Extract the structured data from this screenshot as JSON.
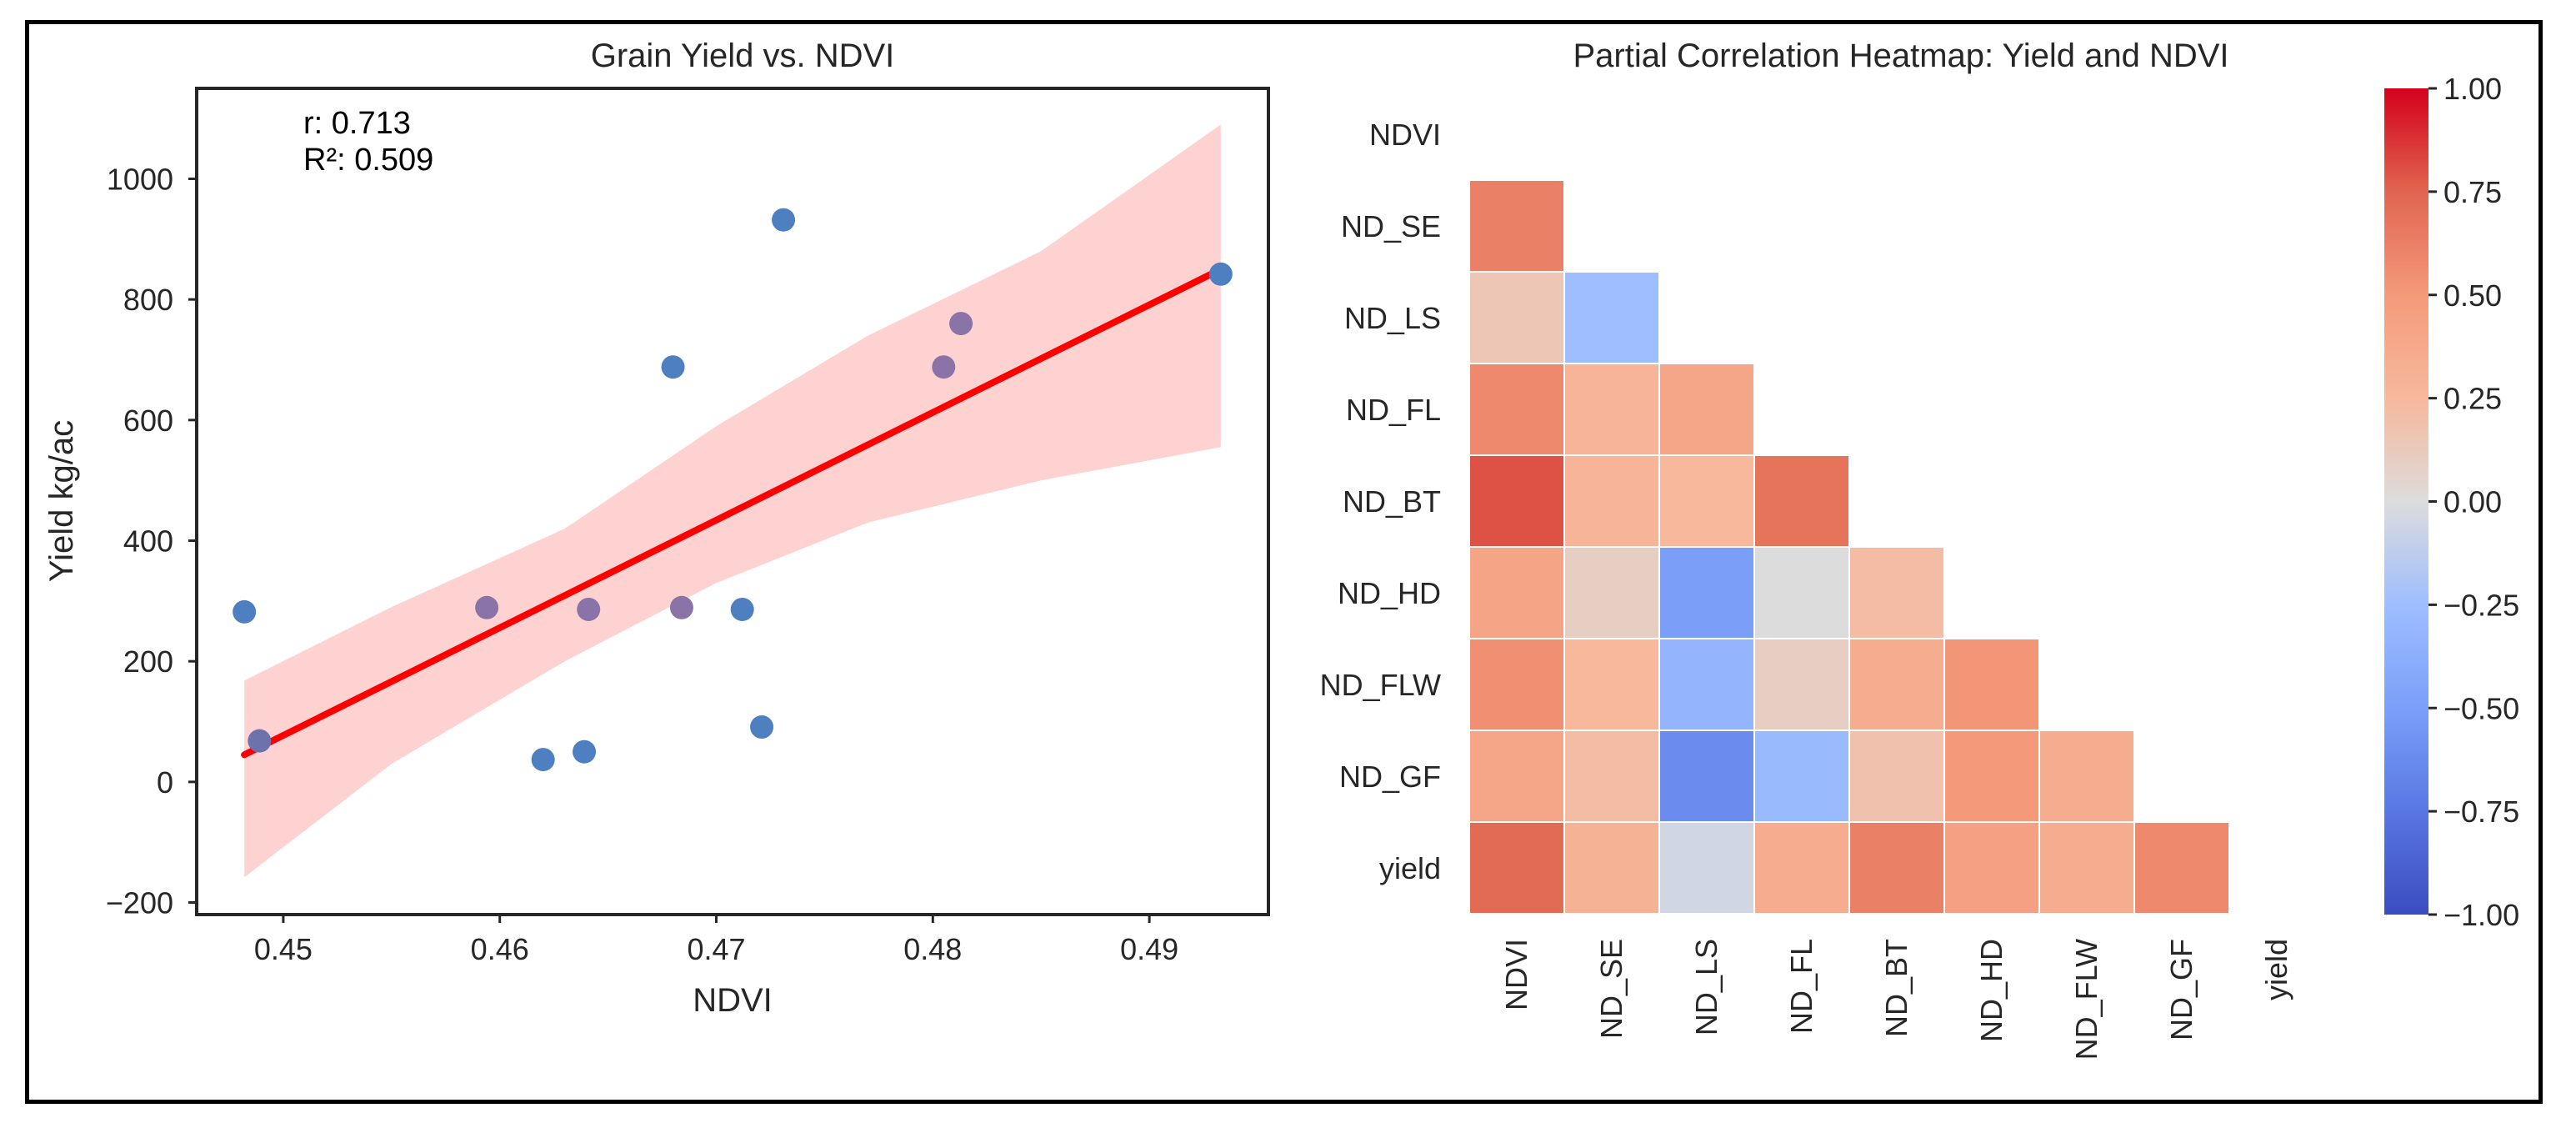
{
  "chart_data": [
    {
      "type": "scatter",
      "title": "Grain Yield vs. NDVI",
      "xlabel": "NDVI",
      "ylabel": "Yield kg/ac",
      "xlim": [
        0.446,
        0.4955
      ],
      "ylim": [
        -220,
        1150
      ],
      "xticks": [
        0.45,
        0.46,
        0.47,
        0.48,
        0.49
      ],
      "xtick_labels": [
        "0.45",
        "0.46",
        "0.47",
        "0.48",
        "0.49"
      ],
      "yticks": [
        -200,
        0,
        200,
        400,
        600,
        800,
        1000
      ],
      "ytick_labels": [
        "−200",
        "0",
        "200",
        "400",
        "600",
        "800",
        "1000"
      ],
      "grid": false,
      "points": [
        {
          "x": 0.4482,
          "y": 282,
          "color": "#4e7fc0"
        },
        {
          "x": 0.4489,
          "y": 68,
          "color": "#6d72ad"
        },
        {
          "x": 0.4594,
          "y": 289,
          "color": "#8a73a6"
        },
        {
          "x": 0.462,
          "y": 37,
          "color": "#4e7fc0"
        },
        {
          "x": 0.4639,
          "y": 50,
          "color": "#4e7fc0"
        },
        {
          "x": 0.4641,
          "y": 286,
          "color": "#8a73a6"
        },
        {
          "x": 0.468,
          "y": 688,
          "color": "#4e7fc0"
        },
        {
          "x": 0.4684,
          "y": 289,
          "color": "#8a73a6"
        },
        {
          "x": 0.4712,
          "y": 286,
          "color": "#4e7fc0"
        },
        {
          "x": 0.4721,
          "y": 91,
          "color": "#4e7fc0"
        },
        {
          "x": 0.4731,
          "y": 932,
          "color": "#4e7fc0"
        },
        {
          "x": 0.4805,
          "y": 688,
          "color": "#8a73a6"
        },
        {
          "x": 0.4813,
          "y": 760,
          "color": "#8a73a6"
        },
        {
          "x": 0.4933,
          "y": 842,
          "color": "#4e7fc0"
        }
      ],
      "regression_line": {
        "x": [
          0.4482,
          0.4933
        ],
        "y": [
          45,
          850
        ],
        "color": "#ff0000"
      },
      "confidence_band": {
        "x": [
          0.4482,
          0.455,
          0.463,
          0.47,
          0.477,
          0.485,
          0.4933
        ],
        "upper": [
          168,
          290,
          420,
          590,
          740,
          880,
          1090
        ],
        "lower": [
          -158,
          30,
          200,
          330,
          430,
          500,
          555
        ],
        "color": "#ffd2d2"
      },
      "annotation_r": "r: 0.713",
      "annotation_r2": "R²: 0.509"
    },
    {
      "type": "heatmap",
      "title": "Partial Correlation Heatmap: Yield and NDVI",
      "row_labels": [
        "NDVI",
        "ND_SE",
        "ND_LS",
        "ND_FL",
        "ND_BT",
        "ND_HD",
        "ND_FLW",
        "ND_GF",
        "yield"
      ],
      "col_labels": [
        "NDVI",
        "ND_SE",
        "ND_LS",
        "ND_FL",
        "ND_BT",
        "ND_HD",
        "ND_FLW",
        "ND_GF",
        "yield"
      ],
      "mask": "upper-triangle-including-diagonal",
      "values": [
        [],
        [
          0.62
        ],
        [
          0.15,
          -0.25
        ],
        [
          0.58,
          0.28,
          0.4
        ],
        [
          0.8,
          0.28,
          0.25,
          0.68
        ],
        [
          0.42,
          0.1,
          -0.5,
          0.0,
          0.22
        ],
        [
          0.55,
          0.25,
          -0.32,
          0.1,
          0.35,
          0.52
        ],
        [
          0.4,
          0.22,
          -0.62,
          -0.28,
          0.18,
          0.5,
          0.35
        ],
        [
          0.72,
          0.3,
          -0.05,
          0.35,
          0.62,
          0.45,
          0.35,
          0.58
        ]
      ],
      "colorbar": {
        "cmap": "coolwarm",
        "vmin": -1.0,
        "vmax": 1.0,
        "ticks": [
          1.0,
          0.75,
          0.5,
          0.25,
          0.0,
          -0.25,
          -0.5,
          -0.75,
          -1.0
        ],
        "tick_labels": [
          "1.00",
          "0.75",
          "0.50",
          "0.25",
          "0.00",
          "−0.25",
          "−0.50",
          "−0.75",
          "−1.00"
        ]
      }
    }
  ]
}
